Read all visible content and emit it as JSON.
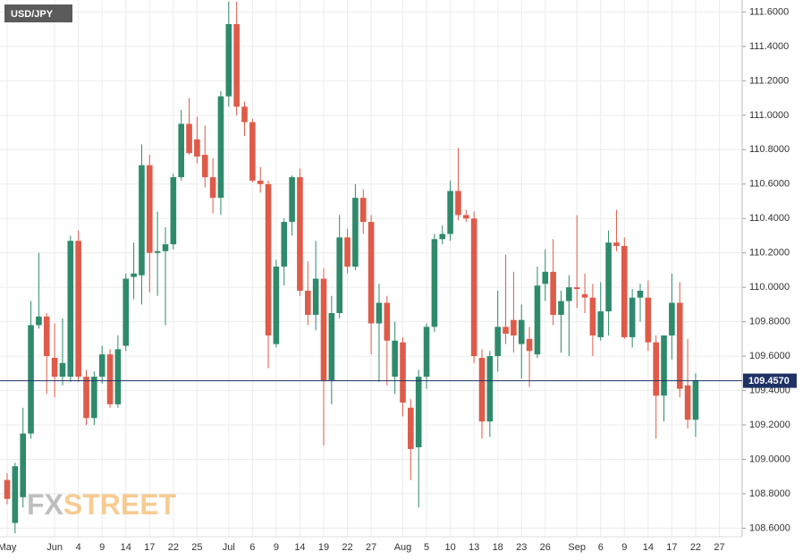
{
  "chart_data": {
    "type": "candlestick",
    "title": "USD/JPY",
    "watermark": [
      "FX",
      "STREET"
    ],
    "categories": [
      "May",
      null,
      null,
      null,
      null,
      null,
      "Jun",
      null,
      null,
      "4",
      null,
      null,
      "9",
      null,
      null,
      "14",
      null,
      null,
      "17",
      null,
      null,
      "22",
      null,
      null,
      "25",
      null,
      null,
      null,
      "Jul",
      null,
      null,
      "6",
      null,
      null,
      "9",
      null,
      null,
      "14",
      null,
      null,
      "19",
      null,
      null,
      "22",
      null,
      null,
      "27",
      null,
      null,
      null,
      "Aug",
      null,
      null,
      "5",
      null,
      null,
      "10",
      null,
      null,
      "13",
      null,
      null,
      "18",
      null,
      null,
      "23",
      null,
      null,
      "26",
      null,
      null,
      null,
      "Sep",
      null,
      null,
      "6",
      null,
      null,
      "9",
      null,
      null,
      "14",
      null,
      null,
      "17",
      null,
      null,
      "22",
      null,
      null,
      "27"
    ],
    "open": [
      108.88,
      108.63,
      108.78,
      109.15,
      109.78,
      109.83,
      109.59,
      109.48,
      109.48,
      110.27,
      109.48,
      109.24,
      109.48,
      109.61,
      109.32,
      109.66,
      110.06,
      110.07,
      110.71,
      110.2,
      110.21,
      110.25,
      110.64,
      110.95,
      110.86,
      110.77,
      110.64,
      110.52,
      111.11,
      111.53,
      111.05,
      110.96,
      110.62,
      110.6,
      109.67,
      110.12,
      110.38,
      110.64,
      109.98,
      109.84,
      110.05,
      109.46,
      109.85,
      110.29,
      110.12,
      110.52,
      110.38,
      109.79,
      109.91,
      109.48,
      109.68,
      109.3,
      109.07,
      109.48,
      109.77,
      110.28,
      110.31,
      110.56,
      110.42,
      110.4,
      109.59,
      109.22,
      109.6,
      109.77,
      109.81,
      109.67,
      109.7,
      109.61,
      110.02,
      110.09,
      109.84,
      109.92,
      110.0,
      109.96,
      109.94,
      109.71,
      109.86,
      110.26,
      110.24,
      109.71,
      109.94,
      109.94,
      109.68,
      109.37,
      109.72,
      109.91,
      109.43,
      109.23,
      null,
      null,
      null
    ],
    "high": [
      108.92,
      108.98,
      109.3,
      109.92,
      110.2,
      109.85,
      109.79,
      109.82,
      110.3,
      110.33,
      109.52,
      109.51,
      109.66,
      109.64,
      109.72,
      110.08,
      110.26,
      110.83,
      110.77,
      110.44,
      110.35,
      110.66,
      111.03,
      111.1,
      110.99,
      110.94,
      110.75,
      111.14,
      111.66,
      111.66,
      111.08,
      110.98,
      110.7,
      110.62,
      110.16,
      110.4,
      110.65,
      110.69,
      110.15,
      110.27,
      110.11,
      109.95,
      110.42,
      110.34,
      110.6,
      110.57,
      110.42,
      110.02,
      109.95,
      109.8,
      109.71,
      109.35,
      109.52,
      109.79,
      110.31,
      110.36,
      110.62,
      110.81,
      110.45,
      110.44,
      109.64,
      109.63,
      109.98,
      110.19,
      110.09,
      109.9,
      109.77,
      110.12,
      110.22,
      110.28,
      109.98,
      110.07,
      110.42,
      110.08,
      110.02,
      110.03,
      110.33,
      110.45,
      110.29,
      109.99,
      110.02,
      110.04,
      109.72,
      109.72,
      110.08,
      110.03,
      109.7,
      109.5,
      null,
      null,
      null
    ],
    "low": [
      108.74,
      108.57,
      108.72,
      109.12,
      109.76,
      109.38,
      109.36,
      109.43,
      109.45,
      109.45,
      109.2,
      109.2,
      109.44,
      109.3,
      109.3,
      109.63,
      109.93,
      109.9,
      109.97,
      109.95,
      109.78,
      110.22,
      110.62,
      110.77,
      110.72,
      110.58,
      110.43,
      110.42,
      111.05,
      111.0,
      110.88,
      110.61,
      110.55,
      109.53,
      109.65,
      110.01,
      110.3,
      109.95,
      109.78,
      109.75,
      109.08,
      109.32,
      109.82,
      110.08,
      110.1,
      110.31,
      109.61,
      109.45,
      109.43,
      109.38,
      109.25,
      108.88,
      108.72,
      109.41,
      109.74,
      110.25,
      110.27,
      110.39,
      110.38,
      109.56,
      109.12,
      109.13,
      109.51,
      109.67,
      109.62,
      109.47,
      109.42,
      109.59,
      109.92,
      109.78,
      109.62,
      109.6,
      109.88,
      109.85,
      109.6,
      109.69,
      109.72,
      110.21,
      109.7,
      109.65,
      109.8,
      109.63,
      109.12,
      109.22,
      109.58,
      109.36,
      109.18,
      109.13,
      null,
      null,
      null
    ],
    "close": [
      108.77,
      108.96,
      109.15,
      109.78,
      109.83,
      109.6,
      109.48,
      109.56,
      110.27,
      109.48,
      109.24,
      109.48,
      109.61,
      109.32,
      109.64,
      110.05,
      110.08,
      110.71,
      110.2,
      110.21,
      110.25,
      110.64,
      110.95,
      110.78,
      110.76,
      110.64,
      110.52,
      111.11,
      111.53,
      111.05,
      110.96,
      110.62,
      110.6,
      109.72,
      110.12,
      110.38,
      110.64,
      109.98,
      109.84,
      110.05,
      109.46,
      109.85,
      110.29,
      110.12,
      110.52,
      110.38,
      109.79,
      109.91,
      109.69,
      109.69,
      109.33,
      109.06,
      109.48,
      109.77,
      110.28,
      110.31,
      110.56,
      110.42,
      110.4,
      109.6,
      109.22,
      109.6,
      109.77,
      109.73,
      109.72,
      109.81,
      109.63,
      110.01,
      110.09,
      109.84,
      109.92,
      110.0,
      109.99,
      109.94,
      109.72,
      109.86,
      110.26,
      110.24,
      109.71,
      109.94,
      109.98,
      109.68,
      109.37,
      109.72,
      109.91,
      109.41,
      109.23,
      109.46,
      null,
      null,
      null
    ],
    "up_color": "#2f8a6c",
    "down_color": "#de5b49",
    "current_price": {
      "value": 109.457,
      "label": "109.4570"
    },
    "ylim": [
      108.55,
      111.67
    ],
    "yticks": [
      {
        "value": 108.6,
        "label": "108.6000"
      },
      {
        "value": 108.8,
        "label": "108.8000"
      },
      {
        "value": 109.0,
        "label": "109.0000"
      },
      {
        "value": 109.2,
        "label": "109.2000"
      },
      {
        "value": 109.4,
        "label": "109.4000"
      },
      {
        "value": 109.6,
        "label": "109.6000"
      },
      {
        "value": 109.8,
        "label": "109.8000"
      },
      {
        "value": 110.0,
        "label": "110.0000"
      },
      {
        "value": 110.2,
        "label": "110.2000"
      },
      {
        "value": 110.4,
        "label": "110.4000"
      },
      {
        "value": 110.6,
        "label": "110.6000"
      },
      {
        "value": 110.8,
        "label": "110.8000"
      },
      {
        "value": 111.0,
        "label": "111.0000"
      },
      {
        "value": 111.2,
        "label": "111.2000"
      },
      {
        "value": 111.4,
        "label": "111.4000"
      },
      {
        "value": 111.6,
        "label": "111.6000"
      }
    ],
    "grid": true
  }
}
